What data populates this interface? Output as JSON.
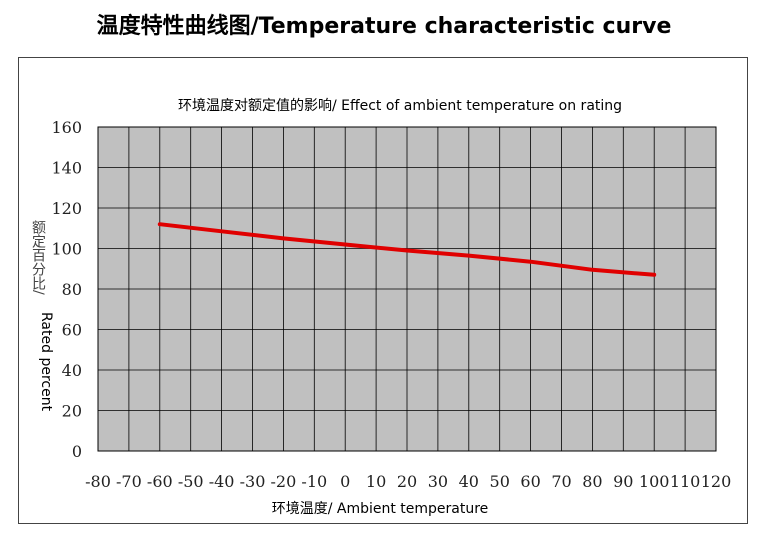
{
  "header": {
    "title": "温度特性曲线图/Temperature characteristic curve"
  },
  "chart_data": {
    "type": "line",
    "title": "环境温度对额定值的影响/ Effect of ambient temperature on rating",
    "xlabel": "环境温度/ Ambient temperature",
    "ylabel_cn": "额定百分比/",
    "ylabel_en": "Rated percent",
    "xlim": [
      -80,
      120
    ],
    "ylim": [
      0,
      160
    ],
    "xticks": [
      "-80",
      "-70",
      "-60",
      "-50",
      "-40",
      "-30",
      "-20",
      "-10",
      "0",
      "10",
      "20",
      "30",
      "40",
      "50",
      "60",
      "70",
      "80",
      "90",
      "100",
      "110",
      "120"
    ],
    "yticks": [
      "0",
      "20",
      "40",
      "60",
      "80",
      "100",
      "120",
      "140",
      "160"
    ],
    "grid": true,
    "colors": {
      "plot_bg": "#c0c0c0",
      "grid": "#000000",
      "line": "#e00000"
    },
    "series": [
      {
        "x": [
          -60,
          -40,
          -20,
          0,
          20,
          40,
          60,
          80,
          100
        ],
        "y": [
          112,
          108.5,
          105,
          102,
          99,
          96.5,
          93.5,
          89.5,
          87
        ]
      }
    ]
  }
}
